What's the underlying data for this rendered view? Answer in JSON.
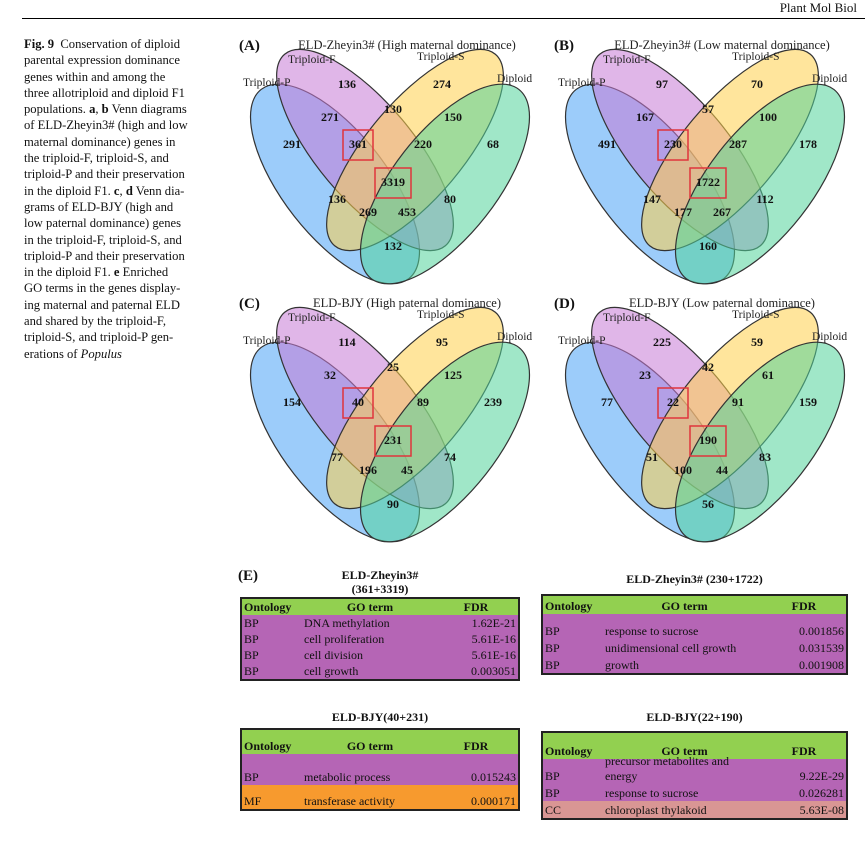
{
  "journal": "Plant Mol Biol",
  "caption_lines": [
    [
      {
        "t": "Fig. 9",
        "s": "b"
      },
      {
        "t": "  Conservation of diploid",
        "s": ""
      }
    ],
    [
      {
        "t": "parental expression dominance",
        "s": ""
      }
    ],
    [
      {
        "t": "genes within and among the",
        "s": ""
      }
    ],
    [
      {
        "t": "three allotriploid and diploid F1",
        "s": ""
      }
    ],
    [
      {
        "t": "populations. ",
        "s": ""
      },
      {
        "t": "a",
        "s": "b"
      },
      {
        "t": ", ",
        "s": ""
      },
      {
        "t": "b",
        "s": "b"
      },
      {
        "t": " Venn diagrams",
        "s": ""
      }
    ],
    [
      {
        "t": "of ELD-Zheyin3# (high and low",
        "s": ""
      }
    ],
    [
      {
        "t": "maternal dominance) genes in",
        "s": ""
      }
    ],
    [
      {
        "t": "the triploid-F, triploid-S, and",
        "s": ""
      }
    ],
    [
      {
        "t": "triploid-P and their preservation",
        "s": ""
      }
    ],
    [
      {
        "t": "in the diploid F1. ",
        "s": ""
      },
      {
        "t": "c",
        "s": "b"
      },
      {
        "t": ", ",
        "s": ""
      },
      {
        "t": "d",
        "s": "b"
      },
      {
        "t": " Venn dia-",
        "s": ""
      }
    ],
    [
      {
        "t": "grams of ELD-BJY (high and",
        "s": ""
      }
    ],
    [
      {
        "t": "low paternal dominance) genes",
        "s": ""
      }
    ],
    [
      {
        "t": "in the triploid-F, triploid-S, and",
        "s": ""
      }
    ],
    [
      {
        "t": "triploid-P and their preservation",
        "s": ""
      }
    ],
    [
      {
        "t": "in the diploid F1. ",
        "s": ""
      },
      {
        "t": "e",
        "s": "b"
      },
      {
        "t": " Enriched",
        "s": ""
      }
    ],
    [
      {
        "t": "GO terms in the genes display-",
        "s": ""
      }
    ],
    [
      {
        "t": "ing maternal and paternal ELD",
        "s": ""
      }
    ],
    [
      {
        "t": "and shared by the triploid-F,",
        "s": ""
      }
    ],
    [
      {
        "t": "triploid-S, and triploid-P gen-",
        "s": ""
      }
    ],
    [
      {
        "t": "erations of ",
        "s": ""
      },
      {
        "t": "Populus",
        "s": "i"
      }
    ]
  ],
  "set_labels": {
    "P": "Triploid-P",
    "F": "Triploid-F",
    "S": "Triploid-S",
    "D": "Diploid"
  },
  "set_colors": {
    "P": "#4aa3f5",
    "F": "#c77ad6",
    "S": "#ffcf4a",
    "D": "#52d39a"
  },
  "highlight_color": "#e0343c",
  "venn": [
    {
      "letter": "(A)",
      "title": "ELD-Zheyin3#  (High maternal dominance)",
      "regions": {
        "P": 291,
        "F": 136,
        "S": 274,
        "D": 68,
        "PF": 271,
        "FS": 130,
        "SD": 150,
        "PFS": 361,
        "FSD": 220,
        "PFSD": 3319,
        "PS": 136,
        "FD": 80,
        "PSD": 269,
        "PFD": 453,
        "PD": 132
      },
      "highlighted": [
        "PFS",
        "PFSD"
      ]
    },
    {
      "letter": "(B)",
      "title": "ELD-Zheyin3# (Low maternal dominance)",
      "regions": {
        "P": 491,
        "F": 97,
        "S": 70,
        "D": 178,
        "PF": 167,
        "FS": 57,
        "SD": 100,
        "PFS": 230,
        "FSD": 287,
        "PFSD": 1722,
        "PS": 147,
        "FD": 112,
        "PSD": 177,
        "PFD": 267,
        "PD": 160
      },
      "highlighted": [
        "PFS",
        "PFSD"
      ]
    },
    {
      "letter": "(C)",
      "title": "ELD-BJY (High paternal dominance)",
      "regions": {
        "P": 154,
        "F": 114,
        "S": 95,
        "D": 239,
        "PF": 32,
        "FS": 25,
        "SD": 125,
        "PFS": 40,
        "FSD": 89,
        "PFSD": 231,
        "PS": 77,
        "FD": 74,
        "PSD": 196,
        "PFD": 45,
        "PD": 90
      },
      "highlighted": [
        "PFS",
        "PFSD"
      ]
    },
    {
      "letter": "(D)",
      "title": "ELD-BJY (Low paternal dominance)",
      "regions": {
        "P": 77,
        "F": 225,
        "S": 59,
        "D": 159,
        "PF": 23,
        "FS": 42,
        "SD": 61,
        "PFS": 22,
        "FSD": 91,
        "PFSD": 190,
        "PS": 51,
        "FD": 83,
        "PSD": 100,
        "PFD": 44,
        "PD": 56
      },
      "highlighted": [
        "PFS",
        "PFSD"
      ]
    }
  ],
  "go_letter": "(E)",
  "ontology_colors": {
    "header": "#92d050",
    "BP": "#b565b5",
    "MF": "#f79a2e",
    "CC": "#d99694"
  },
  "go_tables": [
    {
      "title": "ELD-Zheyin3#\n(361+3319)",
      "headers": [
        "Ontology",
        "GO term",
        "FDR"
      ],
      "rows": [
        [
          "BP",
          "DNA methylation",
          "1.62E-21"
        ],
        [
          "BP",
          "cell proliferation",
          "5.61E-16"
        ],
        [
          "BP",
          "cell division",
          "5.61E-16"
        ],
        [
          "BP",
          "cell growth",
          "0.003051"
        ]
      ]
    },
    {
      "title": "ELD-Zheyin3# (230+1722)",
      "headers": [
        "Ontology",
        "GO term",
        "FDR"
      ],
      "rows": [
        [
          "BP",
          "response to sucrose",
          "0.001856"
        ],
        [
          "BP",
          "unidimensional cell growth",
          "0.031539"
        ],
        [
          "BP",
          "growth",
          "0.001908"
        ]
      ]
    },
    {
      "title": "ELD-BJY(40+231)",
      "headers": [
        "Ontology",
        "GO term",
        "FDR"
      ],
      "rows": [
        [
          "BP",
          "metabolic process",
          "0.015243"
        ],
        [
          "MF",
          "transferase activity",
          "0.000171"
        ]
      ]
    },
    {
      "title": "ELD-BJY(22+190)",
      "headers": [
        "Ontology",
        "GO term",
        "FDR"
      ],
      "rows": [
        [
          "BP",
          "precursor metabolites and energy",
          "9.22E-29"
        ],
        [
          "BP",
          "response to sucrose",
          "0.026281"
        ],
        [
          "CC",
          "chloroplast thylakoid",
          "5.63E-08"
        ]
      ]
    }
  ]
}
